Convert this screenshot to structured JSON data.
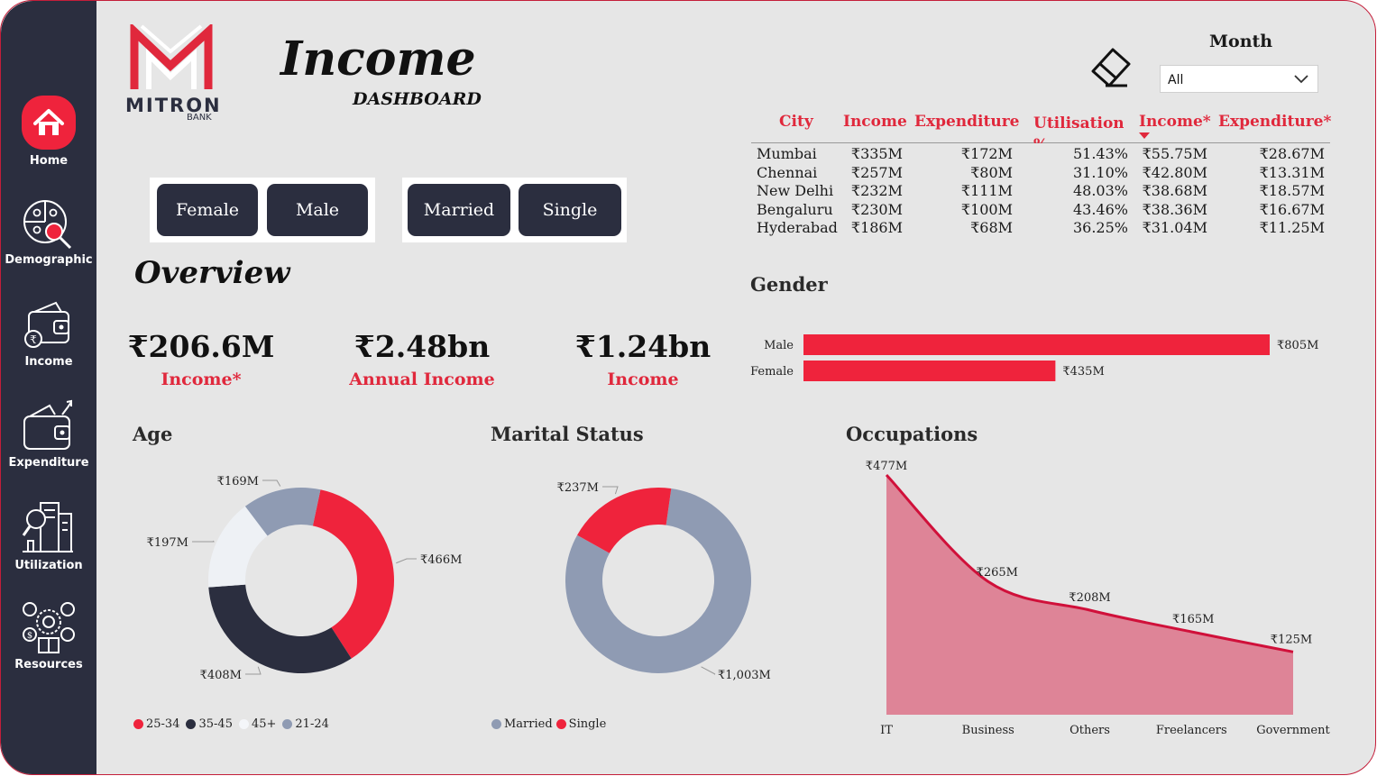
{
  "sidebar": {
    "items": [
      {
        "label": "Home"
      },
      {
        "label": "Demographic"
      },
      {
        "label": "Income"
      },
      {
        "label": "Expenditure"
      },
      {
        "label": "Utilization"
      },
      {
        "label": "Resources"
      }
    ]
  },
  "logo": {
    "name": "MITRON",
    "sub": "BANK"
  },
  "header": {
    "title": "Income",
    "subtitle": "DASHBOARD"
  },
  "filters": {
    "month_label": "Month",
    "month_value": "All",
    "gender_buttons": [
      "Female",
      "Male"
    ],
    "marital_buttons": [
      "Married",
      "Single"
    ]
  },
  "city_table": {
    "columns": [
      "City",
      "Income",
      "Expenditure",
      "Utilisation %",
      "Income*",
      "Expenditure*"
    ],
    "rows": [
      [
        "Mumbai",
        "₹335M",
        "₹172M",
        "51.43%",
        "₹55.75M",
        "₹28.67M"
      ],
      [
        "Chennai",
        "₹257M",
        "₹80M",
        "31.10%",
        "₹42.80M",
        "₹13.31M"
      ],
      [
        "New Delhi",
        "₹232M",
        "₹111M",
        "48.03%",
        "₹38.68M",
        "₹18.57M"
      ],
      [
        "Bengaluru",
        "₹230M",
        "₹100M",
        "43.46%",
        "₹38.36M",
        "₹16.67M"
      ],
      [
        "Hyderabad",
        "₹186M",
        "₹68M",
        "36.25%",
        "₹31.04M",
        "₹11.25M"
      ]
    ]
  },
  "overview": {
    "title": "Overview",
    "kpis": [
      {
        "value": "₹206.6M",
        "label": "Income*"
      },
      {
        "value": "₹2.48bn",
        "label": "Annual Income"
      },
      {
        "value": "₹1.24bn",
        "label": "Income"
      }
    ]
  },
  "colors": {
    "accent": "#ef233c",
    "navy": "#2b2e3f",
    "grey": "#8f9bb3",
    "light": "#eef1f5",
    "area": "#de8497",
    "line": "#d0103a"
  },
  "chart_data": [
    {
      "id": "gender",
      "type": "bar",
      "orientation": "horizontal",
      "title": "Gender",
      "categories": [
        "Male",
        "Female"
      ],
      "values": [
        805,
        435
      ],
      "labels": [
        "₹805M",
        "₹435M"
      ]
    },
    {
      "id": "age",
      "type": "pie",
      "donut": true,
      "title": "Age",
      "categories": [
        "25-34",
        "35-45",
        "45+",
        "21-24"
      ],
      "values": [
        466,
        408,
        197,
        169
      ],
      "labels": [
        "₹466M",
        "₹408M",
        "₹197M",
        "₹169M"
      ],
      "colors": [
        "#ef233c",
        "#2b2e3f",
        "#eef1f5",
        "#8f9bb3"
      ]
    },
    {
      "id": "marital",
      "type": "pie",
      "donut": true,
      "title": "Marital Status",
      "categories": [
        "Married",
        "Single"
      ],
      "values": [
        1003,
        237
      ],
      "labels": [
        "₹1,003M",
        "₹237M"
      ],
      "colors": [
        "#8f9bb3",
        "#ef233c"
      ]
    },
    {
      "id": "occupations",
      "type": "area",
      "title": "Occupations",
      "categories": [
        "IT",
        "Business",
        "Others",
        "Freelancers",
        "Government"
      ],
      "values": [
        477,
        265,
        208,
        165,
        125
      ],
      "labels": [
        "₹477M",
        "₹265M",
        "₹208M",
        "₹165M",
        "₹125M"
      ],
      "ylim": [
        0,
        477
      ]
    }
  ]
}
